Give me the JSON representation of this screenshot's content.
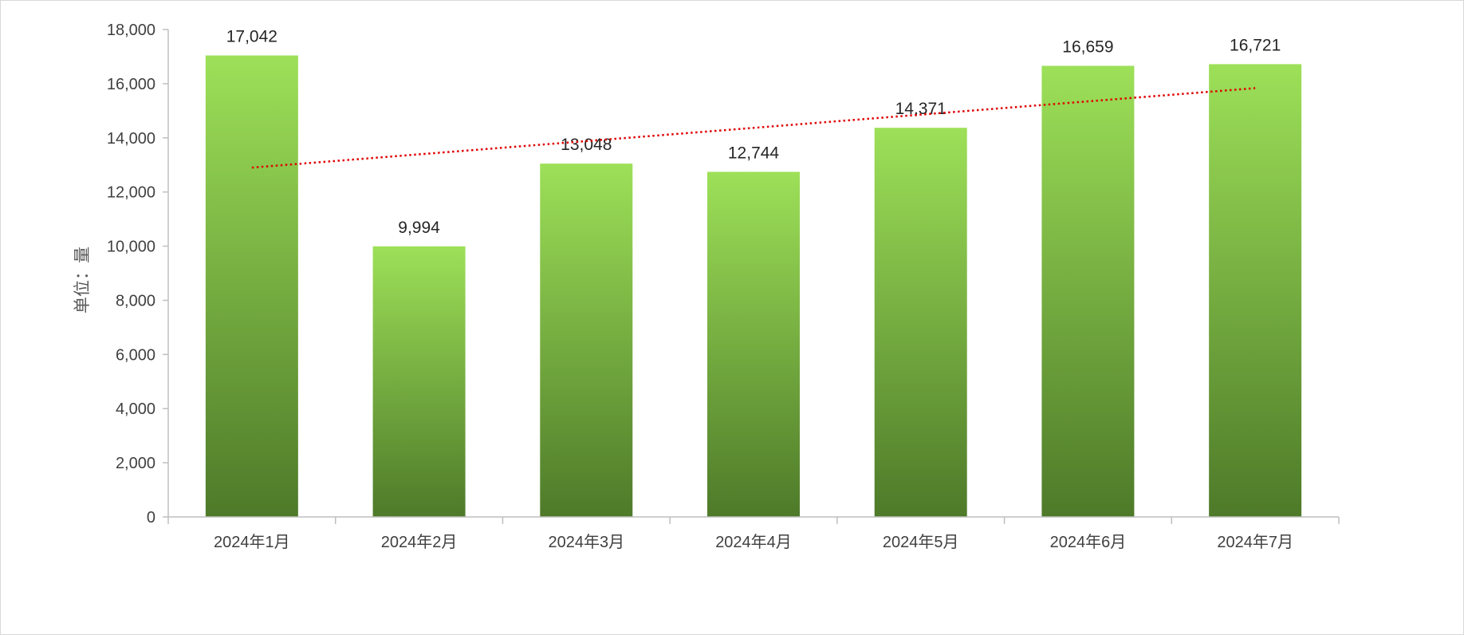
{
  "chart_data": {
    "type": "bar",
    "title": "",
    "xlabel": "",
    "ylabel": "单位：量",
    "categories": [
      "2024年1月",
      "2024年2月",
      "2024年3月",
      "2024年4月",
      "2024年5月",
      "2024年6月",
      "2024年7月"
    ],
    "series": [
      {
        "values": [
          17042,
          9994,
          13048,
          12744,
          14371,
          16659,
          16721
        ]
      }
    ],
    "data_labels": [
      "17,042",
      "9,994",
      "13,048",
      "12,744",
      "14,371",
      "16,659",
      "16,721"
    ],
    "ylim": [
      0,
      18000
    ],
    "y_ticks": [
      0,
      2000,
      4000,
      6000,
      8000,
      10000,
      12000,
      14000,
      16000,
      18000
    ],
    "y_tick_labels": [
      "0",
      "2,000",
      "4,000",
      "6,000",
      "8,000",
      "10,000",
      "12,000",
      "14,000",
      "16,000",
      "18,000"
    ],
    "trendline": {
      "type": "linear",
      "style": "dotted"
    },
    "grid": false,
    "legend": "none",
    "colors": {
      "bar_top": "#9de058",
      "bar_bottom": "#4e7a29",
      "trendline": "#e00000",
      "axis": "#bfbfbf"
    }
  }
}
